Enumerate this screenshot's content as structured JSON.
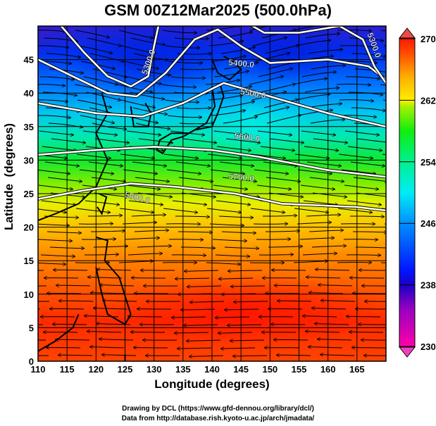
{
  "title": "GSM 00Z12Mar2025 (500.0hPa)",
  "x_axis": {
    "label": "Longitude (degrees)",
    "range": [
      110,
      170
    ],
    "ticks": [
      "110",
      "115",
      "120",
      "125",
      "130",
      "135",
      "140",
      "145",
      "150",
      "155",
      "160",
      "165"
    ]
  },
  "y_axis": {
    "label": "Latitude  (degrees)",
    "range": [
      0,
      50
    ],
    "ticks": [
      "0",
      "5",
      "10",
      "15",
      "20",
      "25",
      "30",
      "35",
      "40",
      "45"
    ]
  },
  "colorbar": {
    "ticks": [
      "270",
      "262",
      "254",
      "246",
      "238",
      "230"
    ],
    "range": [
      230,
      270
    ],
    "stops": [
      "#ff00aa",
      "#9a00c0",
      "#1a00c8",
      "#0018ff",
      "#0090ff",
      "#00ecf4",
      "#00f090",
      "#10ee10",
      "#a8f000",
      "#fff000",
      "#ffaa00",
      "#ff5000",
      "#ff1800"
    ]
  },
  "contours": {
    "labels": [
      "5300.0",
      "5300.0",
      "5400.0",
      "5500.0",
      "5600.0",
      "5700.0",
      "5800.0"
    ]
  },
  "credits": {
    "line1": "Drawing by DCL (https://www.gfd-dennou.org/library/dcl/)",
    "line2": "Data from http://database.rish.kyoto-u.ac.jp/arch/jmadata/"
  }
}
